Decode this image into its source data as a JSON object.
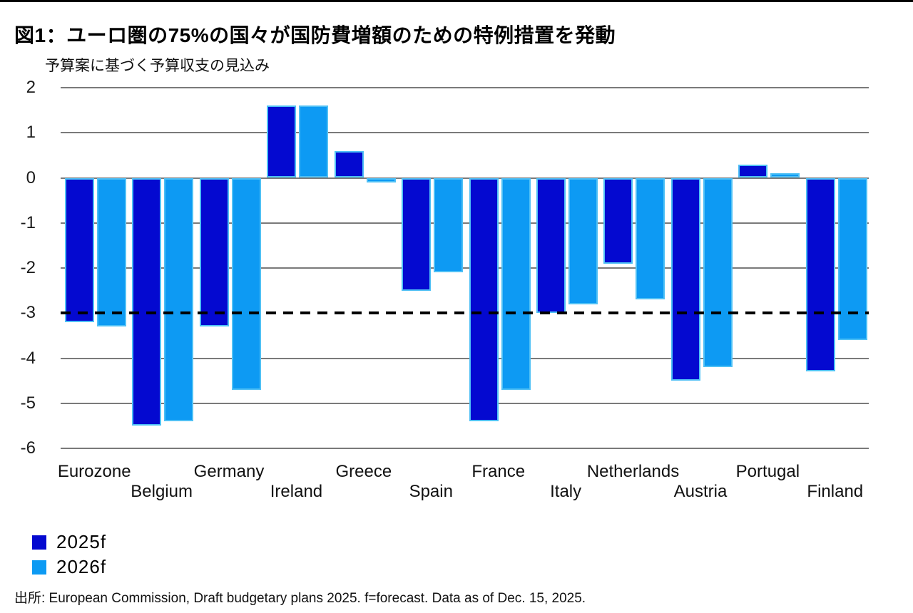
{
  "chart_data": {
    "type": "bar",
    "title": "図1：ユーロ圏の75%の国々が国防費増額のための特例措置を発動",
    "subtitle": "予算案に基づく予算収支の見込み",
    "categories": [
      "Eurozone",
      "Belgium",
      "Germany",
      "Ireland",
      "Greece",
      "Spain",
      "France",
      "Italy",
      "Netherlands",
      "Austria",
      "Portugal",
      "Finland"
    ],
    "series": [
      {
        "name": "2025f",
        "color": "#0409d0",
        "values": [
          -3.2,
          -5.5,
          -3.3,
          1.6,
          0.6,
          -2.5,
          -5.4,
          -3.0,
          -1.9,
          -4.5,
          0.3,
          -4.3
        ]
      },
      {
        "name": "2026f",
        "color": "#0d9af3",
        "values": [
          -3.3,
          -5.4,
          -4.7,
          1.6,
          -0.1,
          -2.1,
          -4.7,
          -2.8,
          -2.7,
          -4.2,
          0.1,
          -3.6
        ]
      }
    ],
    "bar_stroke_color": "#4fc0f5",
    "yticks": [
      2,
      1,
      0,
      -1,
      -2,
      -3,
      -4,
      -5,
      -6
    ],
    "ylim": [
      -6,
      2
    ],
    "reference_line": {
      "value": -3,
      "style": "dashed",
      "color": "#000000"
    },
    "grid": true,
    "gridline_color": "#7a7a7a",
    "legend_position": "bottom-left"
  },
  "source": {
    "text": "出所: European Commission, Draft budgetary plans 2025. f=forecast. Data as of Dec. 15, 2025."
  }
}
